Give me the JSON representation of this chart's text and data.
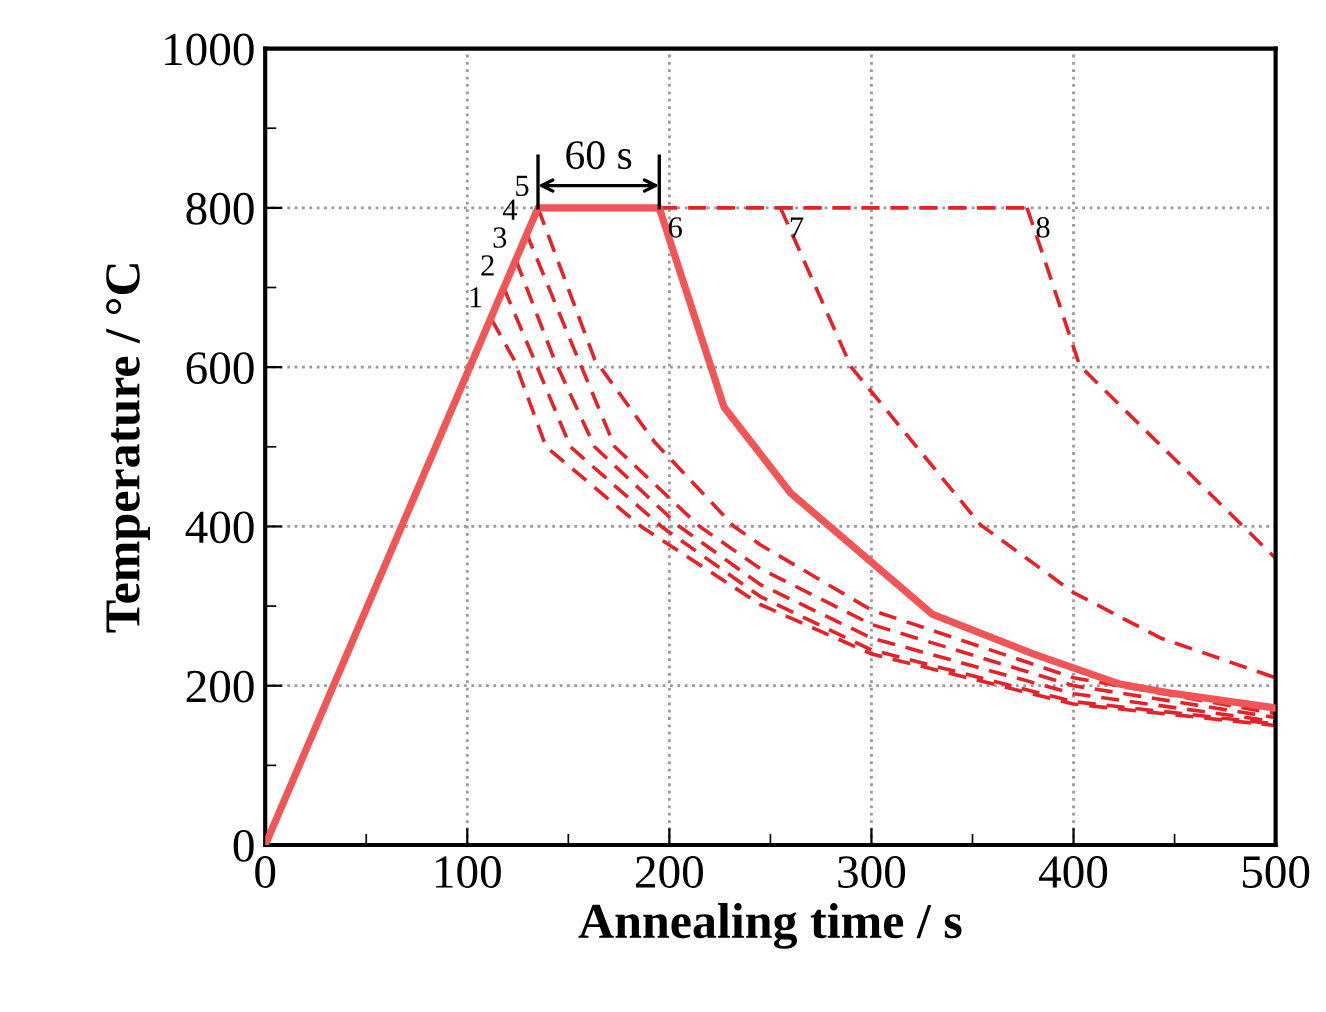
{
  "chart_data": {
    "type": "line",
    "xlabel": "Annealing time / s",
    "ylabel": "Temperature / °C",
    "xlim": [
      0,
      500
    ],
    "ylim": [
      0,
      1000
    ],
    "xticks": [
      0,
      100,
      200,
      300,
      400,
      500
    ],
    "yticks": [
      0,
      200,
      400,
      600,
      800,
      1000
    ],
    "grid": true,
    "legend": false,
    "marker": "none",
    "series": [
      {
        "color": "#f25555",
        "line_style": "solid",
        "x": [
          0,
          135,
          195,
          227,
          260,
          330,
          380,
          423,
          450,
          500
        ],
        "values": [
          0,
          800,
          800,
          550,
          442,
          290,
          240,
          202,
          190,
          172
        ]
      },
      {
        "color": "#e52228",
        "line_style": "dashed",
        "x": [
          112,
          123,
          139,
          186,
          245,
          300,
          400,
          500
        ],
        "values": [
          660,
          610,
          500,
          400,
          302,
          240,
          177,
          150
        ]
      },
      {
        "color": "#e52228",
        "line_style": "dashed",
        "x": [
          118,
          133,
          151,
          196,
          245,
          300,
          400,
          500
        ],
        "values": [
          700,
          610,
          500,
          400,
          312,
          245,
          180,
          152
        ]
      },
      {
        "color": "#e52228",
        "line_style": "dashed",
        "x": [
          124,
          143,
          163,
          205,
          245,
          300,
          400,
          500
        ],
        "values": [
          735,
          610,
          500,
          400,
          327,
          260,
          190,
          155
        ]
      },
      {
        "color": "#e52228",
        "line_style": "dashed",
        "x": [
          129,
          150,
          173,
          215,
          245,
          300,
          400,
          500
        ],
        "values": [
          770,
          640,
          500,
          400,
          347,
          277,
          200,
          160
        ]
      },
      {
        "color": "#e52228",
        "line_style": "dashed",
        "x": [
          135,
          163,
          193,
          232,
          245,
          300,
          400,
          500
        ],
        "values": [
          800,
          610,
          505,
          400,
          377,
          295,
          210,
          165
        ]
      },
      {
        "color": "#e52228",
        "line_style": "dashed",
        "x": [
          195,
          377
        ],
        "values": [
          800,
          800
        ]
      },
      {
        "color": "#e52228",
        "line_style": "dashed",
        "x": [
          255,
          290,
          354,
          400,
          443,
          500
        ],
        "values": [
          800,
          600,
          402,
          317,
          260,
          210
        ]
      },
      {
        "color": "#e52228",
        "line_style": "dashed",
        "x": [
          377,
          385,
          403,
          443,
          470,
          500
        ],
        "values": [
          800,
          740,
          602,
          502,
          435,
          360
        ]
      }
    ],
    "annotations": [
      {
        "text": "60 s",
        "x": 165,
        "y": 800
      },
      "1",
      "2",
      "3",
      "4",
      "5",
      "6",
      "7",
      "8"
    ]
  }
}
